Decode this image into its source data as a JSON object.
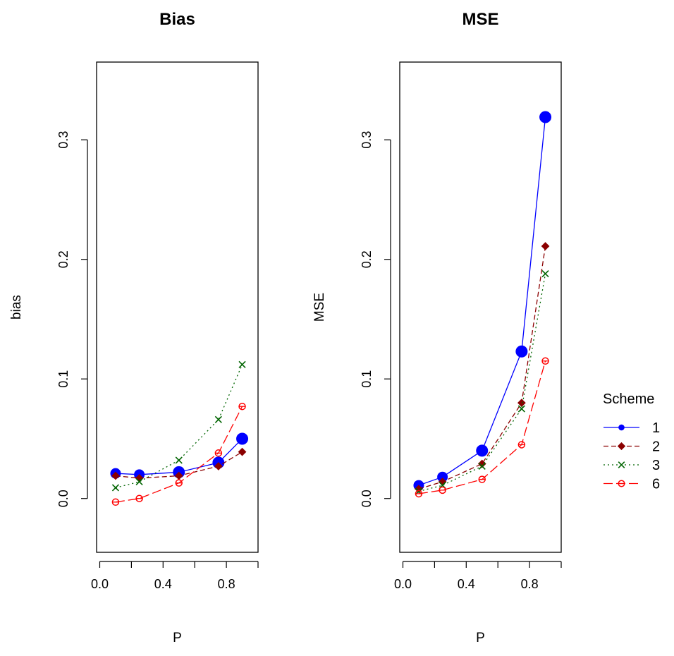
{
  "chart_data": [
    {
      "type": "line",
      "title": "Bias",
      "xlabel": "P",
      "ylabel": "bias",
      "xlim": [
        -0.02,
        1.0
      ],
      "ylim": [
        -0.045,
        0.365
      ],
      "xticks": [
        "0.0",
        "0.4",
        "0.8"
      ],
      "xtick_values": [
        0.0,
        0.4,
        0.8
      ],
      "xtick_marks": [
        0.0,
        0.2,
        0.4,
        0.6,
        0.8,
        1.0
      ],
      "yticks": [
        "0.0",
        "0.1",
        "0.2",
        "0.3"
      ],
      "ytick_values": [
        0.0,
        0.1,
        0.2,
        0.3
      ],
      "grid": false,
      "series": [
        {
          "name": "1",
          "x": [
            0.1,
            0.25,
            0.5,
            0.75,
            0.9
          ],
          "values": [
            0.021,
            0.02,
            0.022,
            0.03,
            0.05
          ]
        },
        {
          "name": "2",
          "x": [
            0.1,
            0.25,
            0.5,
            0.75,
            0.9
          ],
          "values": [
            0.019,
            0.017,
            0.019,
            0.027,
            0.039
          ]
        },
        {
          "name": "3",
          "x": [
            0.1,
            0.25,
            0.5,
            0.75,
            0.9
          ],
          "values": [
            0.009,
            0.014,
            0.032,
            0.066,
            0.112
          ]
        },
        {
          "name": "6",
          "x": [
            0.1,
            0.25,
            0.5,
            0.75,
            0.9
          ],
          "values": [
            -0.003,
            0.0,
            0.013,
            0.038,
            0.077
          ]
        }
      ]
    },
    {
      "type": "line",
      "title": "MSE",
      "xlabel": "P",
      "ylabel": "MSE",
      "xlim": [
        -0.02,
        1.0
      ],
      "ylim": [
        -0.045,
        0.365
      ],
      "xticks": [
        "0.0",
        "0.4",
        "0.8"
      ],
      "xtick_values": [
        0.0,
        0.4,
        0.8
      ],
      "xtick_marks": [
        0.0,
        0.2,
        0.4,
        0.6,
        0.8,
        1.0
      ],
      "yticks": [
        "0.0",
        "0.1",
        "0.2",
        "0.3"
      ],
      "ytick_values": [
        0.0,
        0.1,
        0.2,
        0.3
      ],
      "grid": false,
      "series": [
        {
          "name": "1",
          "x": [
            0.1,
            0.25,
            0.5,
            0.75,
            0.9
          ],
          "values": [
            0.011,
            0.018,
            0.04,
            0.123,
            0.319
          ]
        },
        {
          "name": "2",
          "x": [
            0.1,
            0.25,
            0.5,
            0.75,
            0.9
          ],
          "values": [
            0.008,
            0.014,
            0.029,
            0.08,
            0.211
          ]
        },
        {
          "name": "3",
          "x": [
            0.1,
            0.25,
            0.5,
            0.75,
            0.9
          ],
          "values": [
            0.006,
            0.011,
            0.027,
            0.075,
            0.188
          ]
        },
        {
          "name": "6",
          "x": [
            0.1,
            0.25,
            0.5,
            0.75,
            0.9
          ],
          "values": [
            0.004,
            0.007,
            0.016,
            0.045,
            0.115
          ]
        }
      ]
    }
  ],
  "legend": {
    "title": "Scheme",
    "placement": "right",
    "items": [
      {
        "label": "1",
        "color": "#0000ff",
        "marker": "filled-circle",
        "line": "solid"
      },
      {
        "label": "2",
        "color": "#8b0000",
        "marker": "filled-diamond",
        "line": "dashed"
      },
      {
        "label": "3",
        "color": "#006400",
        "marker": "cross",
        "line": "dotted"
      },
      {
        "label": "6",
        "color": "#ff0000",
        "marker": "open-circle-plus",
        "line": "longdash"
      }
    ]
  }
}
